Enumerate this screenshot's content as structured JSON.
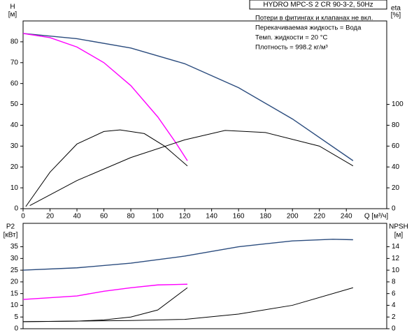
{
  "chart_data": [
    {
      "type": "line",
      "title": "HYDRO MPC-S 2 CR 90-3-2, 50Hz",
      "annotations": [
        "Потери в фитингах и клапанах не вкл.",
        "Перекачиваемая жидкость = Вода",
        "Темп. жидкости = 20 °C",
        "Плотность = 998.2 кг/м³"
      ],
      "y_label": "H",
      "y_unit": "[м]",
      "y2_label": "eta",
      "y2_unit": "[%]",
      "x_label": "Q [м³/ч]",
      "xlim": [
        0,
        270
      ],
      "xticks": [
        0,
        20,
        40,
        60,
        80,
        100,
        120,
        140,
        160,
        180,
        200,
        220,
        240
      ],
      "ylim": [
        0,
        90
      ],
      "yticks": [
        0,
        10,
        20,
        30,
        40,
        50,
        60,
        70,
        80
      ],
      "y2lim": [
        0,
        180
      ],
      "y2ticks": [
        0,
        20,
        40,
        60,
        80,
        100
      ],
      "series": [
        {
          "color": "#2b4c7e",
          "x": [
            0,
            40,
            80,
            120,
            160,
            200,
            245
          ],
          "values": [
            84,
            81.5,
            77,
            69.5,
            58,
            43,
            23
          ]
        },
        {
          "color": "#ff00ff",
          "x": [
            0,
            20,
            40,
            60,
            80,
            100,
            113,
            122
          ],
          "values": [
            84,
            82,
            77.5,
            70,
            59,
            44,
            32,
            23
          ]
        },
        {
          "color": "#000000",
          "axis": "y2",
          "x": [
            2,
            20,
            40,
            60,
            72,
            90,
            105,
            122
          ],
          "values": [
            2,
            35,
            62,
            74,
            75.5,
            72,
            60,
            41
          ]
        },
        {
          "color": "#000000",
          "axis": "y2",
          "x": [
            5,
            40,
            80,
            120,
            150,
            180,
            220,
            245
          ],
          "values": [
            3,
            27,
            49,
            66,
            75,
            73,
            60,
            41
          ]
        }
      ]
    },
    {
      "type": "line",
      "y_label": "P2",
      "y_unit": "[кВт]",
      "y2_label": "NPSH",
      "y2_unit": "[м]",
      "xlim": [
        0,
        270
      ],
      "ylim": [
        0,
        45
      ],
      "yticks": [
        0,
        5,
        10,
        15,
        20,
        25,
        30,
        35
      ],
      "y2lim": [
        0,
        18
      ],
      "y2ticks": [
        0,
        2,
        4,
        6,
        8,
        10,
        12,
        14
      ],
      "series": [
        {
          "color": "#2b4c7e",
          "x": [
            0,
            40,
            80,
            120,
            160,
            200,
            230,
            245
          ],
          "values": [
            25,
            26,
            28,
            31,
            35,
            37.5,
            38.2,
            38
          ]
        },
        {
          "color": "#ff00ff",
          "x": [
            0,
            40,
            60,
            80,
            100,
            122
          ],
          "values": [
            12.5,
            14,
            16,
            17.5,
            18.7,
            19
          ]
        },
        {
          "color": "#000000",
          "axis": "y2",
          "x": [
            0,
            40,
            60,
            80,
            100,
            122
          ],
          "values": [
            1.2,
            1.3,
            1.5,
            2,
            3.2,
            7
          ]
        },
        {
          "color": "#000000",
          "axis": "y2",
          "x": [
            0,
            80,
            120,
            160,
            200,
            245
          ],
          "values": [
            1.2,
            1.4,
            1.6,
            2.5,
            4,
            7
          ]
        }
      ]
    }
  ]
}
